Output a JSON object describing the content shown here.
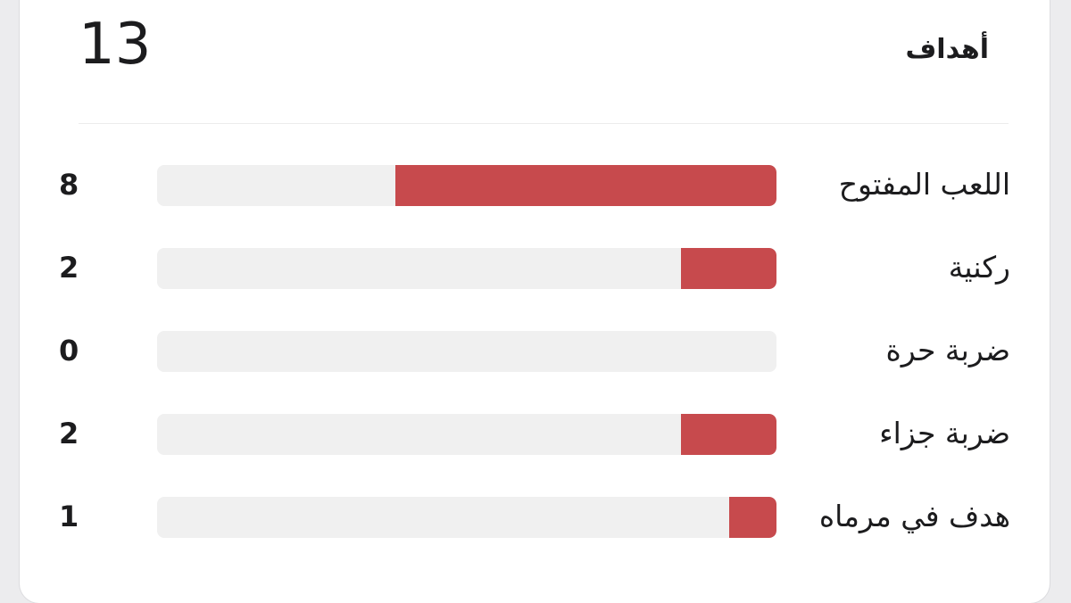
{
  "card": {
    "title": "أهداف",
    "total": "13"
  },
  "rows": [
    {
      "label": "اللعب المفتوح",
      "value": "8",
      "fraction": 0.615
    },
    {
      "label": "ركنية",
      "value": "2",
      "fraction": 0.154
    },
    {
      "label": "ضربة حرة",
      "value": "0",
      "fraction": 0
    },
    {
      "label": "ضربة جزاء",
      "value": "2",
      "fraction": 0.154
    },
    {
      "label": "هدف في مرماه",
      "value": "1",
      "fraction": 0.077
    }
  ],
  "colors": {
    "bar_fill": "#c74a4d",
    "bar_track": "#f0f0f0",
    "text": "#1c1c1e"
  }
}
